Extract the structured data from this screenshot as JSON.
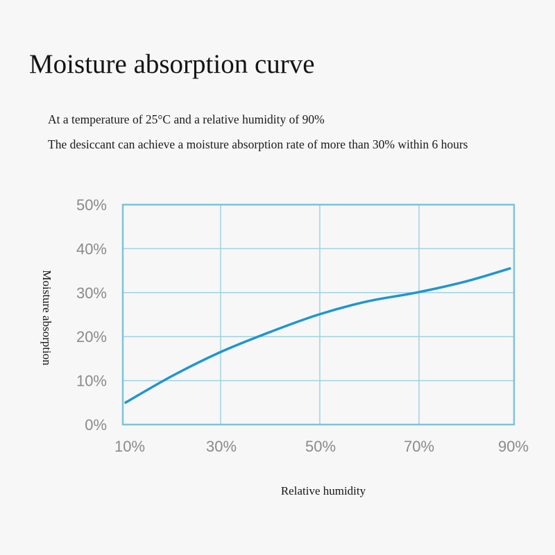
{
  "page": {
    "title": "Moisture absorption curve",
    "subtitle_lines": [
      "At a temperature of 25°C and a relative humidity of 90%",
      "The desiccant can achieve a moisture absorption rate of more than 30% within 6 hours"
    ]
  },
  "chart_data": {
    "type": "line",
    "title": "Moisture absorption curve",
    "xlabel": "Relative humidity",
    "ylabel": "Moisture absorption",
    "x_ticks": [
      "10%",
      "30%",
      "50%",
      "70%",
      "90%"
    ],
    "y_ticks": [
      "0%",
      "10%",
      "20%",
      "30%",
      "40%",
      "50%"
    ],
    "xlim": [
      10,
      90
    ],
    "ylim": [
      0,
      50
    ],
    "grid": true,
    "series": [
      {
        "x": [
          10,
          20,
          30,
          40,
          50,
          60,
          70,
          80,
          90
        ],
        "y": [
          5,
          11,
          16.5,
          21,
          25,
          28,
          30,
          32.5,
          35.5
        ]
      }
    ],
    "colors": {
      "line": "#1e96cf",
      "grid": "#9fd2e3",
      "frame": "#7cc3db"
    }
  }
}
